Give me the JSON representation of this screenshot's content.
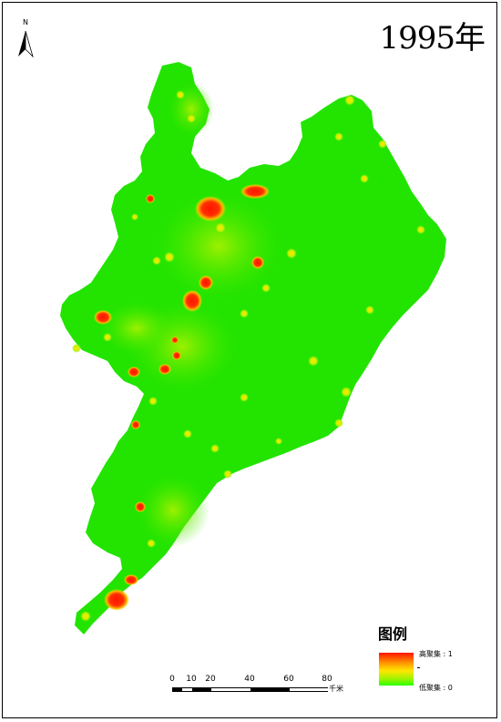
{
  "map": {
    "title": "1995年",
    "north_label": "N",
    "legend": {
      "title": "图例",
      "high_label": "高聚集 : 1",
      "low_label": "低聚集 : 0",
      "colors": [
        "#ff1400",
        "#ff9a00",
        "#ffe600",
        "#a6f200",
        "#2bff00"
      ]
    },
    "scale_bar": {
      "ticks": [
        "0",
        "10",
        "20",
        "40",
        "60",
        "80"
      ],
      "unit": "千米"
    },
    "base_color": "#1ee600"
  }
}
